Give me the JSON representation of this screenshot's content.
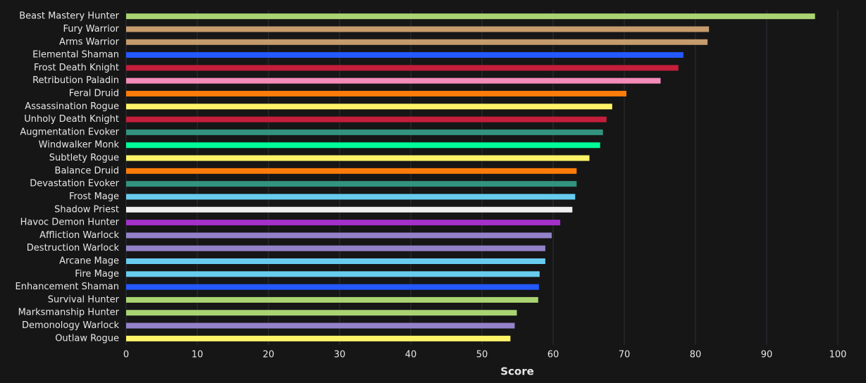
{
  "chart_data": {
    "type": "barh",
    "xlabel": "Score",
    "categories": [
      "Beast Mastery Hunter",
      "Fury Warrior",
      "Arms Warrior",
      "Elemental Shaman",
      "Frost Death Knight",
      "Retribution Paladin",
      "Feral Druid",
      "Assassination Rogue",
      "Unholy Death Knight",
      "Augmentation Evoker",
      "Windwalker Monk",
      "Subtlety Rogue",
      "Balance Druid",
      "Devastation Evoker",
      "Frost Mage",
      "Shadow Priest",
      "Havoc Demon Hunter",
      "Affliction Warlock",
      "Destruction Warlock",
      "Arcane Mage",
      "Fire Mage",
      "Enhancement Shaman",
      "Survival Hunter",
      "Marksmanship Hunter",
      "Demonology Warlock",
      "Outlaw Rogue"
    ],
    "values": [
      96.8,
      81.9,
      81.7,
      78.3,
      77.6,
      75.1,
      70.3,
      68.3,
      67.5,
      67.0,
      66.6,
      65.1,
      63.3,
      63.3,
      63.1,
      62.7,
      61.0,
      59.8,
      58.9,
      58.9,
      58.1,
      58.0,
      57.9,
      54.9,
      54.6,
      54.0
    ],
    "colors": [
      "#aad372",
      "#c69b6d",
      "#c69b6d",
      "#2459ff",
      "#c41e3b",
      "#f48cba",
      "#ff7c0a",
      "#fff468",
      "#c41e3b",
      "#33937f",
      "#00ff98",
      "#fff468",
      "#ff7c0a",
      "#33937f",
      "#68ccef",
      "#f0f0f0",
      "#a330c9",
      "#9482c9",
      "#9482c9",
      "#68ccef",
      "#68ccef",
      "#2459ff",
      "#aad372",
      "#aad372",
      "#9482c9",
      "#fff468"
    ],
    "xlim": [
      0,
      100
    ],
    "xticks": [
      0,
      10,
      20,
      30,
      40,
      50,
      60,
      70,
      80,
      90,
      100
    ],
    "grid": true
  }
}
